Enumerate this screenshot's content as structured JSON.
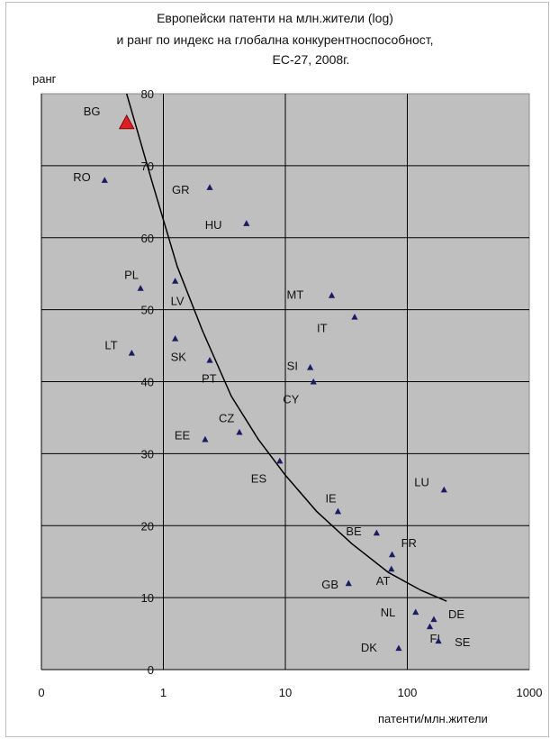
{
  "chart_data": {
    "type": "scatter",
    "title_lines": [
      "Европейски патенти на млн.жители (log)",
      "и ранг по индекс на глобална конкурентноспособност,",
      "ЕС-27, 2008г."
    ],
    "xlabel": "патенти/млн.жители",
    "ylabel": "ранг",
    "x_scale": "log",
    "xlim": [
      0.1,
      1000
    ],
    "ylim": [
      0,
      80
    ],
    "x_ticks": [
      "0",
      "1",
      "10",
      "100",
      "1000"
    ],
    "y_ticks": [
      "0",
      "10",
      "20",
      "30",
      "40",
      "50",
      "60",
      "70",
      "80"
    ],
    "grid": true,
    "plot_background": "#bfbfbf",
    "marker_color": "#1a1a66",
    "highlight_color": "#e02020",
    "points": [
      {
        "label": "BG",
        "x": 0.5,
        "y": 76,
        "highlight": true
      },
      {
        "label": "RO",
        "x": 0.33,
        "y": 68
      },
      {
        "label": "GR",
        "x": 2.4,
        "y": 67
      },
      {
        "label": "HU",
        "x": 4.8,
        "y": 62
      },
      {
        "label": "PL",
        "x": 0.65,
        "y": 53
      },
      {
        "label": "LV",
        "x": 1.25,
        "y": 54
      },
      {
        "label": "MT",
        "x": 24,
        "y": 52
      },
      {
        "label": "IT",
        "x": 37,
        "y": 49
      },
      {
        "label": "LT",
        "x": 0.55,
        "y": 44
      },
      {
        "label": "SK",
        "x": 1.25,
        "y": 46
      },
      {
        "label": "PT",
        "x": 2.4,
        "y": 43
      },
      {
        "label": "SI",
        "x": 16,
        "y": 42
      },
      {
        "label": "CY",
        "x": 17,
        "y": 40
      },
      {
        "label": "EE",
        "x": 2.2,
        "y": 32
      },
      {
        "label": "CZ",
        "x": 4.2,
        "y": 33
      },
      {
        "label": "ES",
        "x": 9,
        "y": 29
      },
      {
        "label": "LU",
        "x": 200,
        "y": 25
      },
      {
        "label": "IE",
        "x": 27,
        "y": 22
      },
      {
        "label": "BE",
        "x": 56,
        "y": 19
      },
      {
        "label": "FR",
        "x": 75,
        "y": 16
      },
      {
        "label": "AT",
        "x": 74,
        "y": 14
      },
      {
        "label": "GB",
        "x": 33,
        "y": 12
      },
      {
        "label": "NL",
        "x": 117,
        "y": 8
      },
      {
        "label": "DE",
        "x": 165,
        "y": 7
      },
      {
        "label": "FI",
        "x": 153,
        "y": 6
      },
      {
        "label": "SE",
        "x": 180,
        "y": 4
      },
      {
        "label": "DK",
        "x": 85,
        "y": 3
      }
    ],
    "trendline": {
      "x": [
        0.5,
        0.8,
        1.3,
        2.1,
        3.6,
        6,
        10,
        18,
        35,
        70,
        130,
        210
      ],
      "y": [
        80,
        68,
        56,
        47,
        38,
        32,
        27,
        22,
        17.5,
        13.5,
        11,
        9.5
      ]
    }
  }
}
